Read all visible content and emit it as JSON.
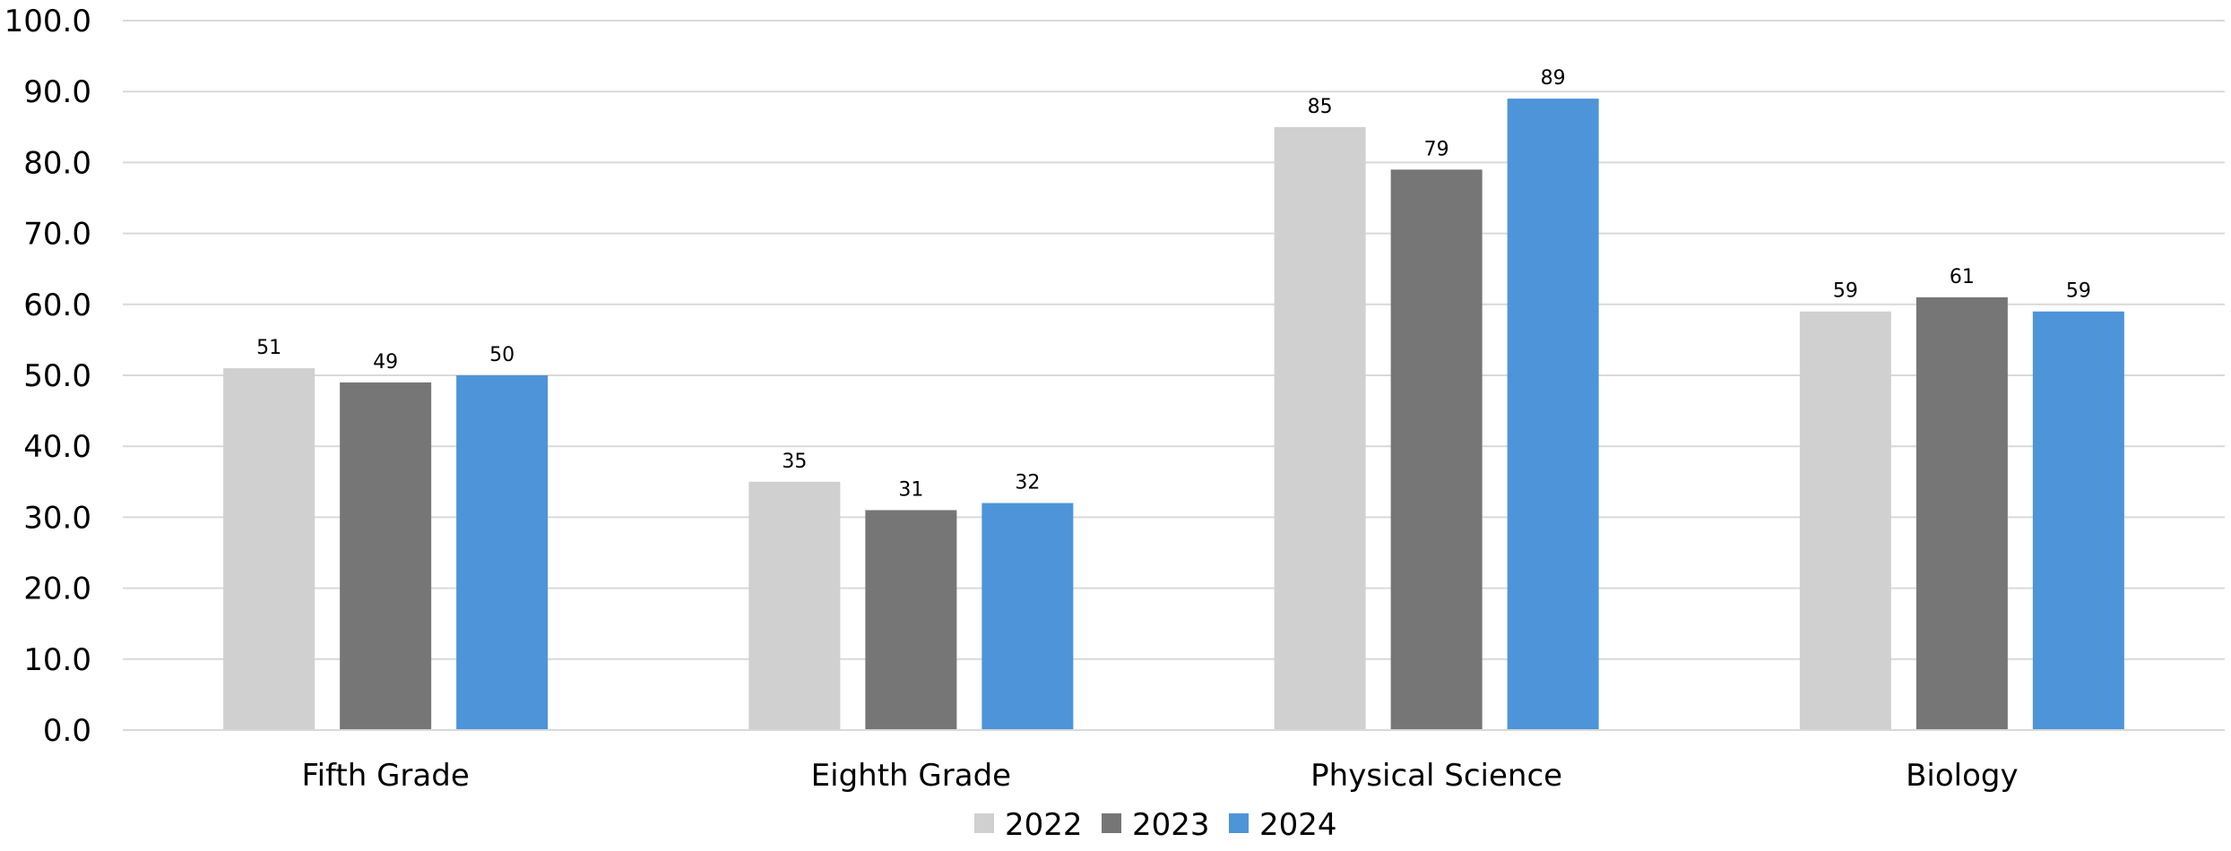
{
  "chart_data": {
    "type": "bar",
    "title": "",
    "xlabel": "",
    "ylabel": "",
    "categories": [
      "Fifth Grade",
      "Eighth Grade",
      "Physical Science",
      "Biology"
    ],
    "series": [
      {
        "name": "2022",
        "color": "#d0d0d0",
        "values": [
          51,
          35,
          85,
          59
        ]
      },
      {
        "name": "2023",
        "color": "#767676",
        "values": [
          49,
          31,
          79,
          61
        ]
      },
      {
        "name": "2024",
        "color": "#4d94d9",
        "values": [
          50,
          32,
          89,
          59
        ]
      }
    ],
    "ylim": [
      0,
      100
    ],
    "yticks": [
      "0.0",
      "10.0",
      "20.0",
      "30.0",
      "40.0",
      "50.0",
      "60.0",
      "70.0",
      "80.0",
      "90.0",
      "100.0"
    ],
    "ytick_values": [
      0,
      10,
      20,
      30,
      40,
      50,
      60,
      70,
      80,
      90,
      100
    ],
    "grid": true,
    "gridline_color": "#d9d9d9",
    "legend_position": "bottom",
    "data_labels": true
  }
}
